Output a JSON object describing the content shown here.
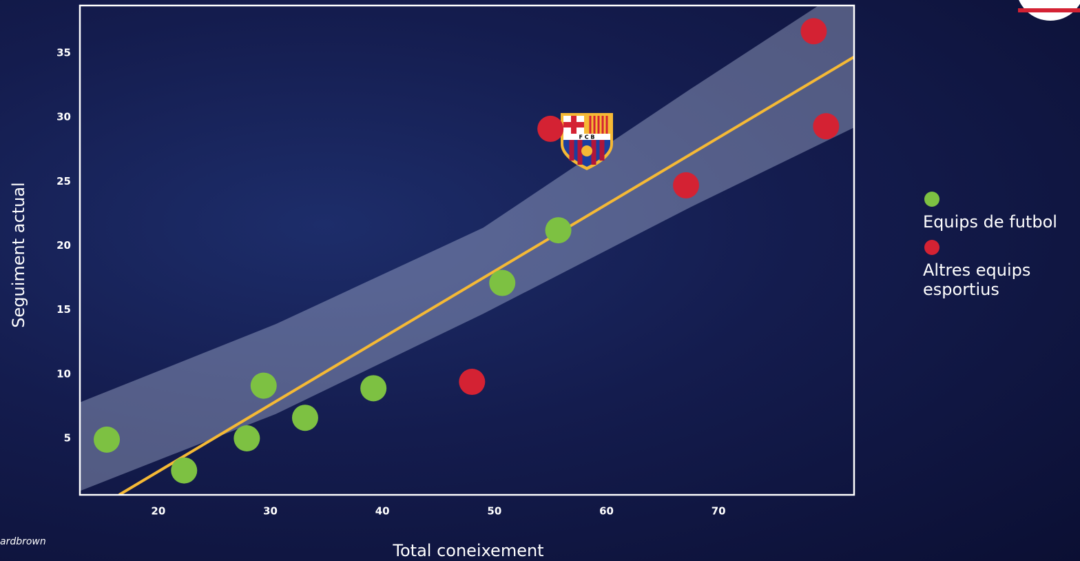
{
  "chart_data": {
    "type": "scatter",
    "x_label": "Total coneixement",
    "y_label": "Seguiment actual",
    "credit": "ardbrown",
    "xlim": [
      13.0,
      82.1
    ],
    "ylim": [
      0.6,
      38.7
    ],
    "xticks": [
      20,
      30,
      40,
      50,
      60,
      70
    ],
    "yticks": [
      5,
      10,
      15,
      20,
      25,
      30,
      35
    ],
    "grid": false,
    "series": [
      {
        "name": "Equips de futbol",
        "color": "#7dc142",
        "x": [
          15.4,
          22.3,
          27.9,
          29.4,
          33.1,
          39.2,
          50.7,
          55.7
        ],
        "values": [
          4.9,
          2.5,
          5.0,
          9.1,
          6.6,
          8.9,
          17.1,
          21.2
        ]
      },
      {
        "name": "Altres equips esportius",
        "color": "#d42233",
        "x": [
          48.0,
          55.0,
          67.1,
          78.5,
          79.6
        ],
        "values": [
          9.4,
          29.1,
          24.7,
          36.7,
          29.3
        ]
      }
    ],
    "trend": {
      "color": "#f5b935",
      "x": [
        16.5,
        82.1
      ],
      "y": [
        0.6,
        34.7
      ]
    },
    "band": {
      "x": [
        13,
        30.5,
        49,
        67.5,
        82.1
      ],
      "upper": [
        7.8,
        13.9,
        21.4,
        32.2,
        40.5
      ],
      "lower": [
        0.9,
        6.9,
        14.7,
        23.0,
        29.2
      ]
    }
  }
}
